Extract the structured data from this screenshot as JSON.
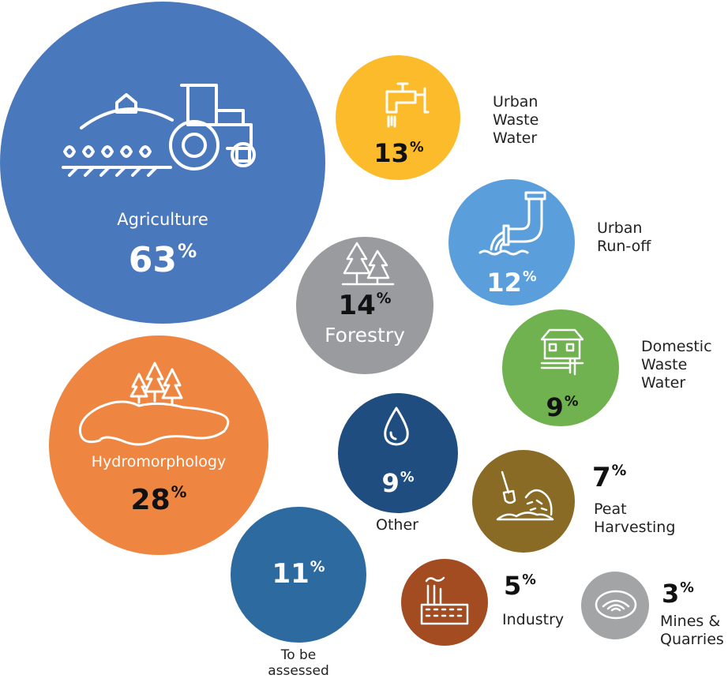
{
  "colors": {
    "agriculture": "#4a78bd",
    "hydromorphology": "#ee8641",
    "forestry": "#999b9e",
    "urban_waste_water": "#fbbb2a",
    "urban_runoff": "#5a9fdb",
    "domestic_waste_water": "#6fb24f",
    "other": "#1f4d7f",
    "peat_harvesting": "#8a6b25",
    "to_be_assessed": "#2d6aa0",
    "industry": "#a34c22",
    "mines_quarries": "#a2a4a6"
  },
  "pressures": {
    "agriculture": {
      "label": "Agriculture",
      "value": "63",
      "unit": "%",
      "icon": "tractor-farm-icon"
    },
    "hydromorphology": {
      "label": "Hydromorphology",
      "value": "28",
      "unit": "%",
      "icon": "lake-trees-icon"
    },
    "forestry": {
      "label": "Forestry",
      "value": "14",
      "unit": "%",
      "icon": "pine-trees-icon"
    },
    "urban_waste_water": {
      "label_lines": [
        "Urban",
        "Waste",
        "Water"
      ],
      "value": "13",
      "unit": "%",
      "icon": "tap-icon"
    },
    "urban_runoff": {
      "label_lines": [
        "Urban",
        "Run-off"
      ],
      "value": "12",
      "unit": "%",
      "icon": "pipe-outflow-icon"
    },
    "domestic_waste_water": {
      "label_lines": [
        "Domestic",
        "Waste",
        "Water"
      ],
      "value": "9",
      "unit": "%",
      "icon": "house-drain-icon"
    },
    "other": {
      "label": "Other",
      "value": "9",
      "unit": "%",
      "icon": "water-drop-icon"
    },
    "peat_harvesting": {
      "label_lines": [
        "Peat",
        "Harvesting"
      ],
      "value": "7",
      "unit": "%",
      "icon": "peat-shovel-icon"
    },
    "to_be_assessed": {
      "label_lines": [
        "To be",
        "assessed"
      ],
      "value": "11",
      "unit": "%"
    },
    "industry": {
      "label": "Industry",
      "value": "5",
      "unit": "%",
      "icon": "factory-icon"
    },
    "mines_quarries": {
      "label_lines": [
        "Mines &",
        "Quarries"
      ],
      "value": "3",
      "unit": "%",
      "icon": "quarry-pit-icon"
    }
  }
}
